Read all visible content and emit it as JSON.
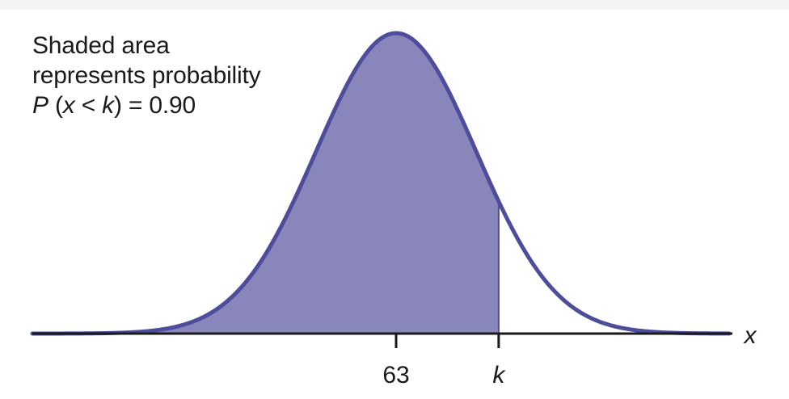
{
  "annotation": {
    "line1": "Shaded area",
    "line2": "represents probability",
    "prob_p": "P",
    "prob_open": " (",
    "prob_x": "x",
    "prob_lt": " < ",
    "prob_k": "k",
    "prob_close": ") = ",
    "prob_value": "0.90"
  },
  "chart_data": {
    "type": "area",
    "distribution": "normal",
    "mean": 63,
    "probability": 0.9,
    "shaded_region": "left of k",
    "x_axis_label": "x",
    "x_ticks": [
      {
        "label": "63",
        "value": "mean"
      },
      {
        "label": "k",
        "value": "k"
      }
    ],
    "grid": false,
    "colors": {
      "fill": "#8886bb",
      "curve": "#4d4d9b",
      "axis": "#1a1a1a"
    }
  }
}
